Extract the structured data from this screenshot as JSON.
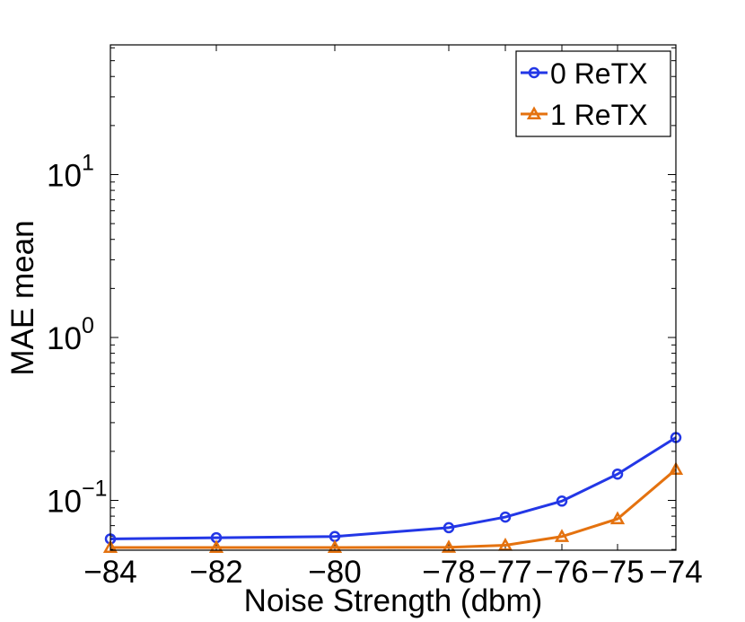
{
  "chart_data": {
    "type": "line",
    "title": "",
    "xlabel": "Noise Strength (dbm)",
    "ylabel": "MAE mean",
    "yscale": "log",
    "x_categories": [
      "−84",
      "−82",
      "−80",
      "−78",
      "−77",
      "−76",
      "−75",
      "−74"
    ],
    "x_values": [
      -84,
      -82,
      -80,
      -78,
      -77,
      -76,
      -75,
      -74
    ],
    "y_ticks": [
      {
        "base": "10",
        "exp": "−1",
        "value": 0.1
      },
      {
        "base": "10",
        "exp": "0",
        "value": 1
      },
      {
        "base": "10",
        "exp": "1",
        "value": 10
      }
    ],
    "ylim": [
      0.05,
      60
    ],
    "legend_position": "top-right",
    "series": [
      {
        "name": "0 ReTX",
        "color": "#2337e6",
        "marker": "circle",
        "values": [
          0.058,
          0.059,
          0.06,
          0.068,
          0.079,
          0.099,
          0.145,
          0.243
        ]
      },
      {
        "name": "1 ReTX",
        "color": "#e4720f",
        "marker": "triangle",
        "values": [
          0.05,
          0.05,
          0.0505,
          0.0515,
          0.053,
          0.06,
          0.077,
          0.155
        ]
      }
    ]
  }
}
